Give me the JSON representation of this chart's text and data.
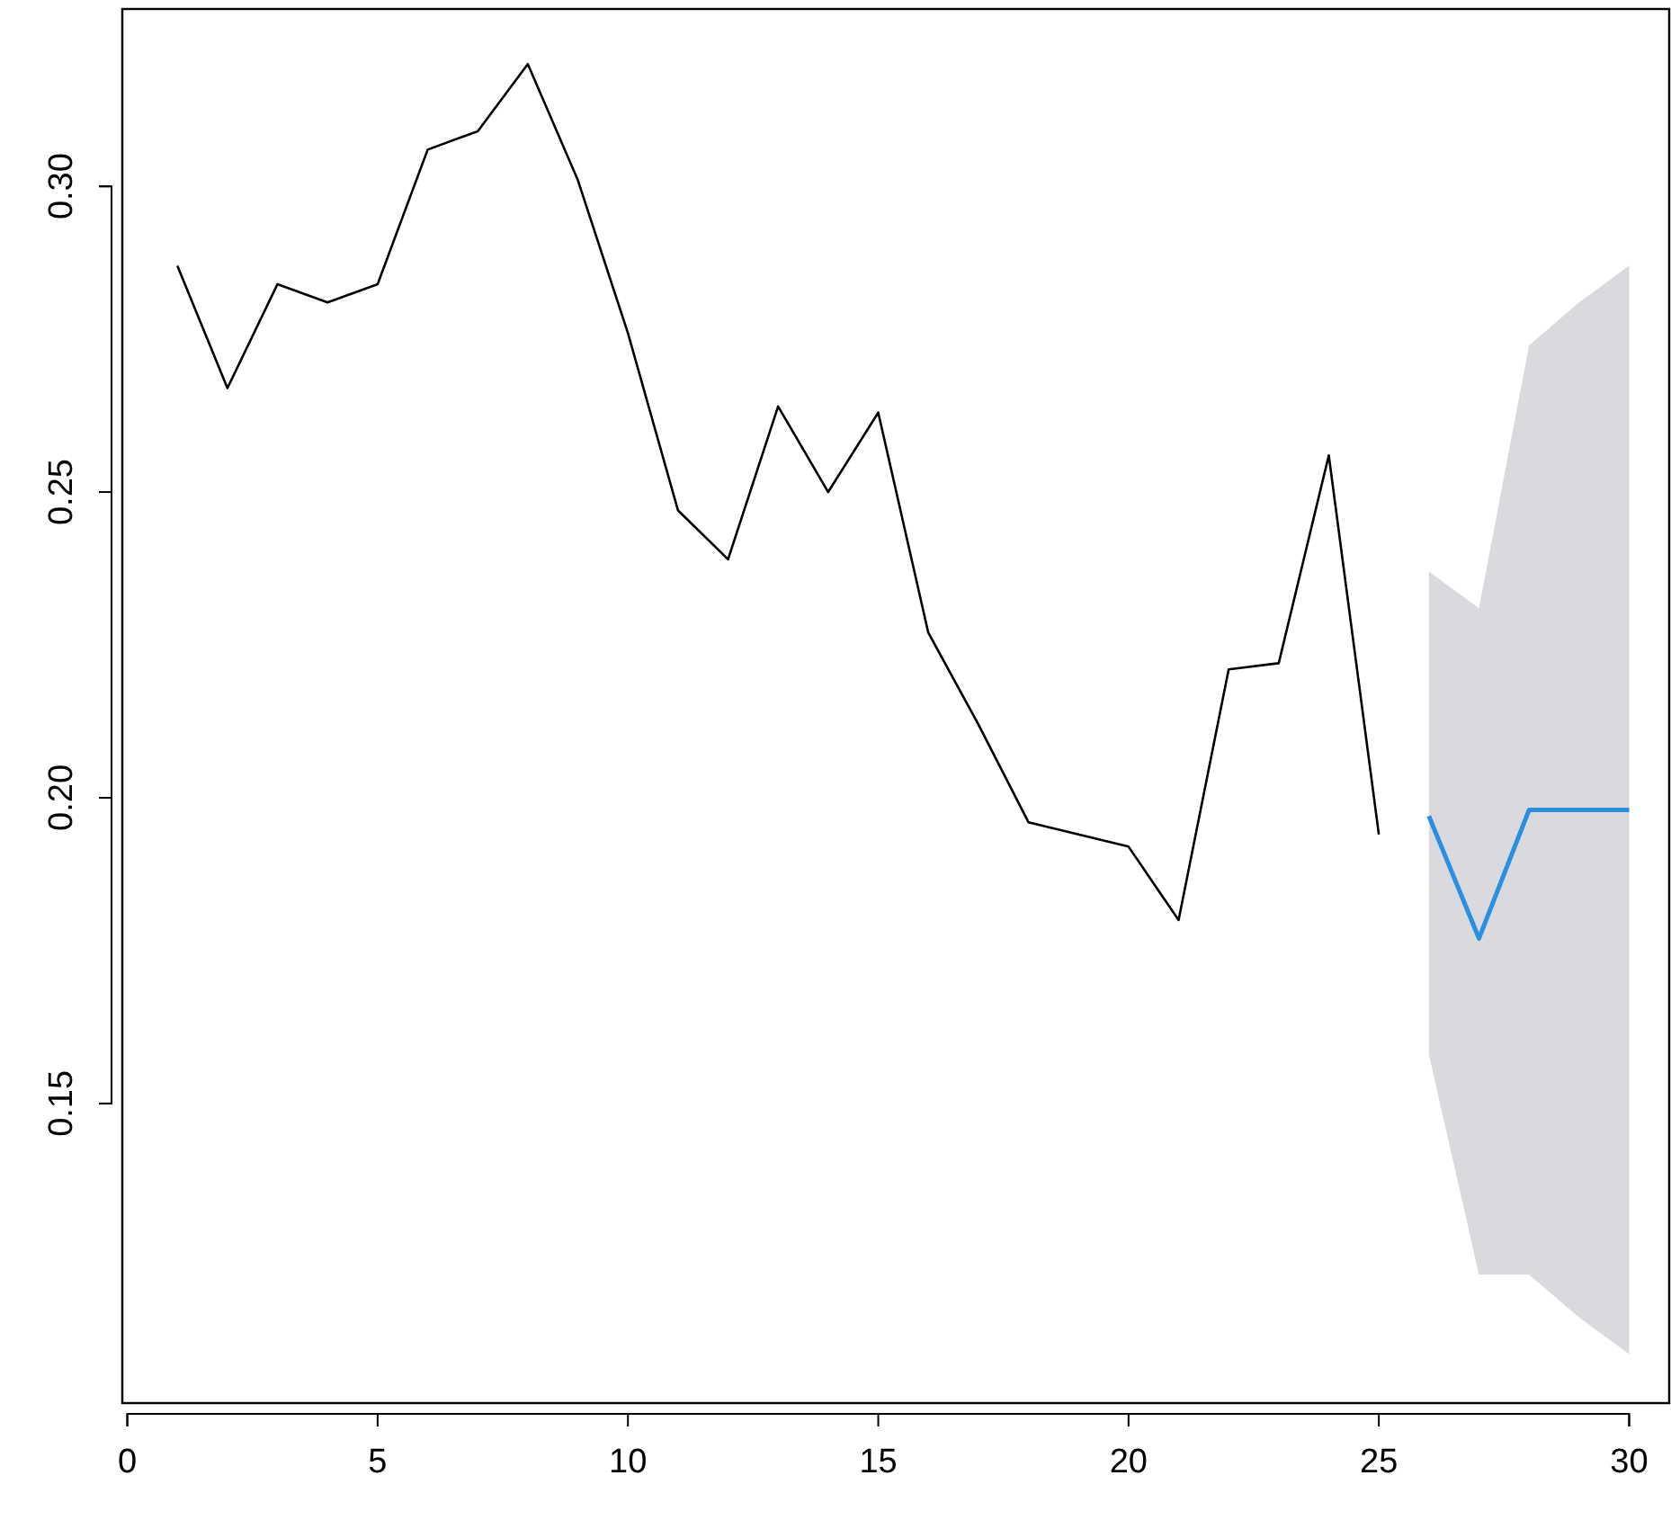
{
  "chart_data": {
    "type": "line",
    "xlim": [
      -0.1,
      30.8
    ],
    "ylim": [
      0.101,
      0.329
    ],
    "xticks": [
      0,
      5,
      10,
      15,
      20,
      25,
      30
    ],
    "yticks": [
      {
        "value": 0.15,
        "label": "0.15"
      },
      {
        "value": 0.2,
        "label": "0.20"
      },
      {
        "value": 0.25,
        "label": "0.25"
      },
      {
        "value": 0.3,
        "label": "0.30"
      }
    ],
    "grid": false,
    "marker": "none",
    "line_style": "solid",
    "series": [
      {
        "color": "#000000",
        "x": [
          1,
          2,
          3,
          4,
          5,
          6,
          7,
          8,
          9,
          10,
          11,
          12,
          13,
          14,
          15,
          16,
          17,
          18,
          19,
          20,
          21,
          22,
          23,
          24,
          25
        ],
        "values": [
          0.287,
          0.267,
          0.284,
          0.281,
          0.284,
          0.306,
          0.309,
          0.32,
          0.301,
          0.276,
          0.247,
          0.239,
          0.264,
          0.25,
          0.263,
          0.227,
          0.212,
          0.196,
          0.194,
          0.192,
          0.18,
          0.221,
          0.222,
          0.256,
          0.194
        ]
      },
      {
        "color": "#2b8fe0",
        "x": [
          26,
          27,
          28,
          29,
          30
        ],
        "values": [
          0.197,
          0.177,
          0.198,
          0.198,
          0.198
        ],
        "lower": [
          0.158,
          0.122,
          0.122,
          0.115,
          0.109
        ],
        "upper": [
          0.237,
          0.231,
          0.274,
          0.281,
          0.287
        ]
      }
    ]
  }
}
